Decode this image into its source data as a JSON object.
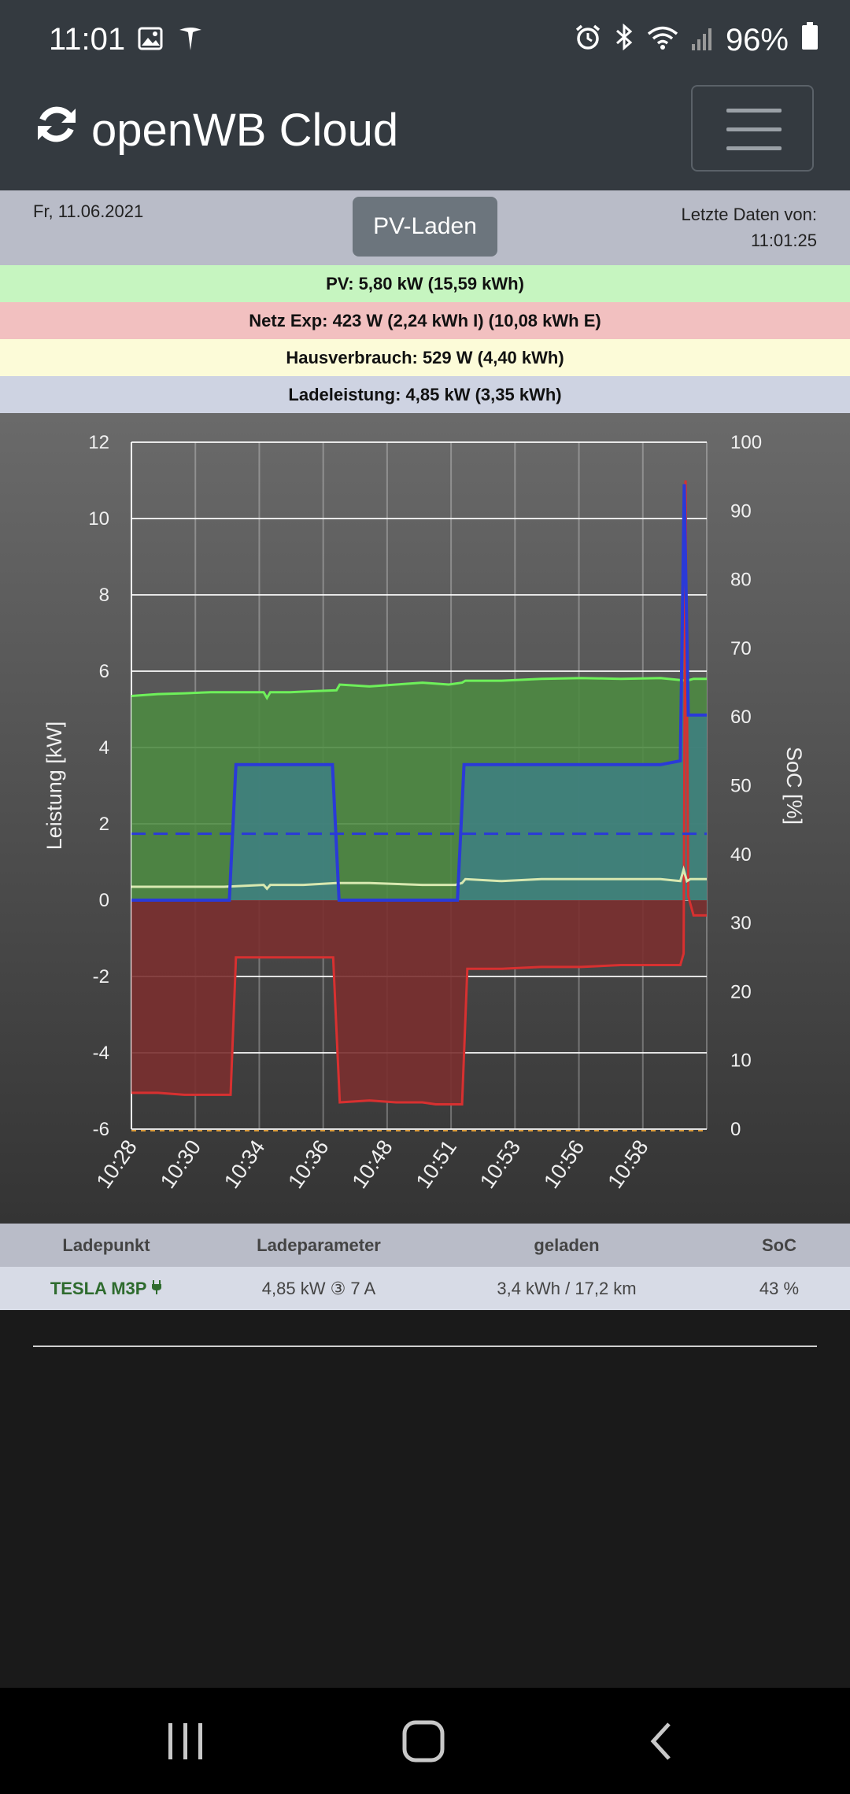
{
  "status_bar": {
    "time": "11:01",
    "battery": "96%",
    "left_icons": [
      "image-icon",
      "tesla-icon"
    ],
    "right_icons": [
      "alarm-icon",
      "bluetooth-icon",
      "wifi-icon",
      "signal-icon",
      "battery-icon"
    ]
  },
  "navbar": {
    "brand": "openWB Cloud",
    "brand_icon": "refresh-icon",
    "menu_icon": "hamburger-icon"
  },
  "info": {
    "date": "Fr, 11.06.2021",
    "mode_button": "PV-Laden",
    "last_data_label": "Letzte Daten von:",
    "last_data_time": "11:01:25"
  },
  "summary": {
    "pv": "PV: 5,80 kW (15,59 kWh)",
    "netz": "Netz Exp: 423 W (2,24 kWh I) (10,08 kWh E)",
    "haus": "Hausverbrauch: 529 W (4,40 kWh)",
    "lade": "Ladeleistung: 4,85 kW (3,35 kWh)"
  },
  "colors": {
    "pv": "#4e8a42",
    "pv_line": "#6ef05a",
    "netz": "#7a2f2f",
    "netz_line": "#d83030",
    "haus_line": "#d8e8b0",
    "lade_line": "#2a3ad8",
    "soc_line": "#2a3ad8",
    "accent_green": "#2e6b2e"
  },
  "chart_data": {
    "type": "area",
    "xlabel": "",
    "ylabel": "Leistung [kW]",
    "y2label": "SoC [%]",
    "ylim": [
      -6,
      12
    ],
    "y2lim": [
      0,
      100
    ],
    "y_ticks": [
      "12",
      "10",
      "8",
      "6",
      "4",
      "2",
      "0",
      "-2",
      "-4",
      "-6"
    ],
    "y2_ticks": [
      "100",
      "90",
      "80",
      "70",
      "60",
      "50",
      "40",
      "30",
      "20",
      "10",
      "0"
    ],
    "x_ticks": [
      "10:28",
      "10:30",
      "10:34",
      "10:36",
      "10:48",
      "10:51",
      "10:53",
      "10:56",
      "10:58"
    ],
    "grid": true,
    "x_domain": [
      0,
      87
    ],
    "series": [
      {
        "name": "PV",
        "x": [
          0,
          4,
          8,
          12,
          16,
          20,
          20.5,
          21,
          24,
          28,
          31,
          31.5,
          36,
          40,
          44,
          48,
          50,
          50.5,
          56,
          62,
          68,
          74,
          80,
          84,
          85,
          86,
          87
        ],
        "values": [
          5.35,
          5.4,
          5.42,
          5.45,
          5.45,
          5.45,
          5.3,
          5.45,
          5.45,
          5.48,
          5.5,
          5.65,
          5.6,
          5.65,
          5.7,
          5.65,
          5.7,
          5.75,
          5.75,
          5.8,
          5.82,
          5.8,
          5.82,
          5.75,
          5.8,
          5.8,
          5.8
        ]
      },
      {
        "name": "Netz",
        "x": [
          0,
          4,
          8,
          12,
          15,
          15.8,
          17,
          22,
          26,
          30.5,
          31.5,
          36,
          40,
          44,
          46,
          49,
          50,
          50.8,
          56,
          62,
          68,
          74,
          80,
          83,
          83.5,
          83.8,
          84.2,
          85,
          87
        ],
        "values": [
          -5.05,
          -5.05,
          -5.1,
          -5.1,
          -5.1,
          -1.5,
          -1.5,
          -1.5,
          -1.5,
          -1.5,
          -5.3,
          -5.25,
          -5.3,
          -5.3,
          -5.35,
          -5.35,
          -5.35,
          -1.8,
          -1.8,
          -1.75,
          -1.75,
          -1.7,
          -1.7,
          -1.7,
          -1.4,
          11.0,
          0.1,
          -0.4,
          -0.4
        ]
      },
      {
        "name": "Hausverbrauch",
        "x": [
          0,
          5,
          10,
          14,
          20,
          20.5,
          21,
          26,
          31,
          36,
          44,
          49,
          50,
          50.5,
          56,
          62,
          68,
          74,
          80,
          83,
          83.5,
          84,
          84.5,
          87
        ],
        "values": [
          0.35,
          0.35,
          0.35,
          0.35,
          0.4,
          0.3,
          0.4,
          0.4,
          0.45,
          0.45,
          0.4,
          0.4,
          0.45,
          0.55,
          0.5,
          0.55,
          0.55,
          0.55,
          0.55,
          0.5,
          0.8,
          0.5,
          0.55,
          0.55
        ]
      },
      {
        "name": "Ladeleistung",
        "x": [
          0,
          14.8,
          15.8,
          20,
          26,
          30.4,
          31.4,
          40,
          49.3,
          50.3,
          56,
          62,
          68,
          74,
          80,
          83,
          83.6,
          84.2,
          84.9,
          87
        ],
        "values": [
          0,
          0,
          3.55,
          3.55,
          3.55,
          3.55,
          0,
          0,
          0,
          3.55,
          3.55,
          3.55,
          3.55,
          3.55,
          3.55,
          3.65,
          10.9,
          4.85,
          4.85,
          4.85
        ]
      },
      {
        "name": "SoC",
        "x": [
          0,
          87
        ],
        "values": [
          43,
          43
        ]
      }
    ]
  },
  "table": {
    "headers": [
      "Ladepunkt",
      "Ladeparameter",
      "geladen",
      "SoC"
    ],
    "rows": [
      {
        "ladepunkt": "TESLA M3P",
        "ladepunkt_icon": "plug-icon",
        "ladeparameter": "4,85 kW ③ 7 A",
        "geladen": "3,4 kWh / 17,2 km",
        "soc": "43 %"
      }
    ]
  }
}
